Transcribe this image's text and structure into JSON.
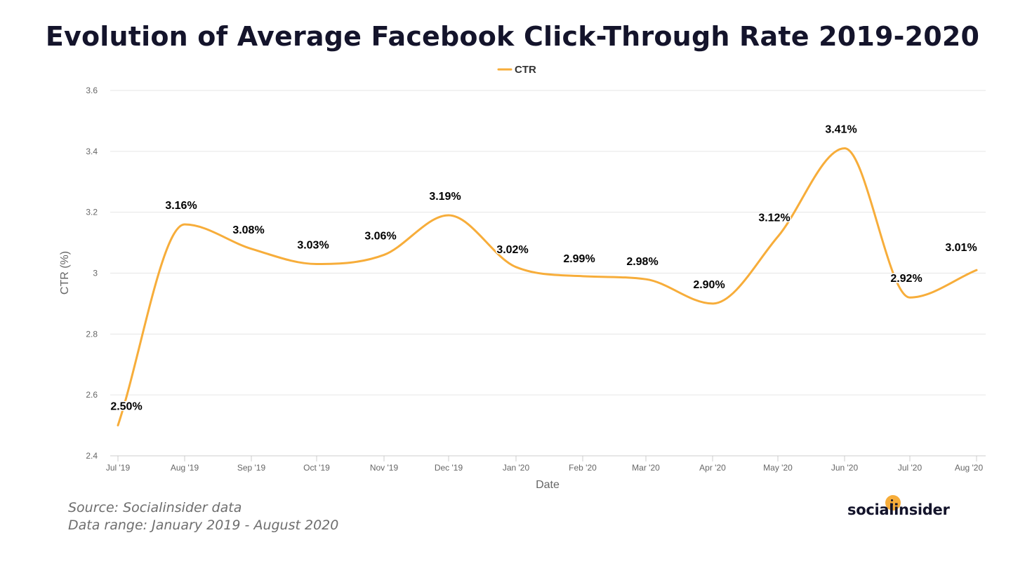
{
  "title": "Evolution of Average Facebook Click-Through Rate 2019-2020",
  "colors": {
    "line": "#F7AD3A",
    "grid": "#e6e6e6",
    "axis_text": "#666666",
    "label_text": "#000000",
    "logo_accent": "#F7AD3A"
  },
  "chart_data": {
    "type": "line",
    "title": "Evolution of Average Facebook Click-Through Rate 2019-2020",
    "xlabel": "Date",
    "ylabel": "CTR (%)",
    "ylim": [
      2.4,
      3.6
    ],
    "yticks": [
      "2.4",
      "2.6",
      "2.8",
      "3",
      "3.2",
      "3.4",
      "3.6"
    ],
    "grid": true,
    "legend_position": "top-center",
    "categories": [
      "Jul '19",
      "Aug '19",
      "Sep '19",
      "Oct '19",
      "Nov '19",
      "Dec '19",
      "Jan '20",
      "Feb '20",
      "Mar '20",
      "Apr '20",
      "May '20",
      "Jun '20",
      "Jul '20",
      "Aug '20"
    ],
    "series": [
      {
        "name": "CTR",
        "values": [
          2.5,
          3.16,
          3.08,
          3.03,
          3.06,
          3.19,
          3.02,
          2.99,
          2.98,
          2.9,
          3.12,
          3.41,
          2.92,
          3.01
        ],
        "data_labels": [
          "2.50%",
          "3.16%",
          "3.08%",
          "3.03%",
          "3.06%",
          "3.19%",
          "3.02%",
          "2.99%",
          "2.98%",
          "2.90%",
          "3.12%",
          "3.41%",
          "2.92%",
          "3.01%"
        ]
      }
    ]
  },
  "footer": {
    "source": "Source: Socialinsider data",
    "range": "Data range: January 2019 - August 2020"
  },
  "logo": {
    "text": "socialinsider"
  }
}
